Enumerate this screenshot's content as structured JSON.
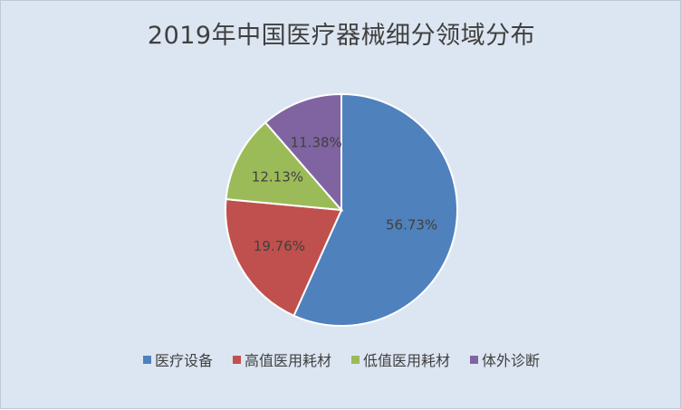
{
  "chart_data": {
    "type": "pie",
    "title": "2019年中国医疗器械细分领域分布",
    "categories": [
      "医疗设备",
      "高值医用耗材",
      "低值医用耗材",
      "体外诊断"
    ],
    "values": [
      56.73,
      19.76,
      12.13,
      11.38
    ],
    "labels": [
      "56.73%",
      "19.76%",
      "12.13%",
      "11.38%"
    ],
    "colors": [
      "#4f81bd",
      "#c0504d",
      "#9bbb59",
      "#8064a2"
    ],
    "legend": "bottom",
    "start_angle": "12 o'clock",
    "direction": "clockwise"
  }
}
